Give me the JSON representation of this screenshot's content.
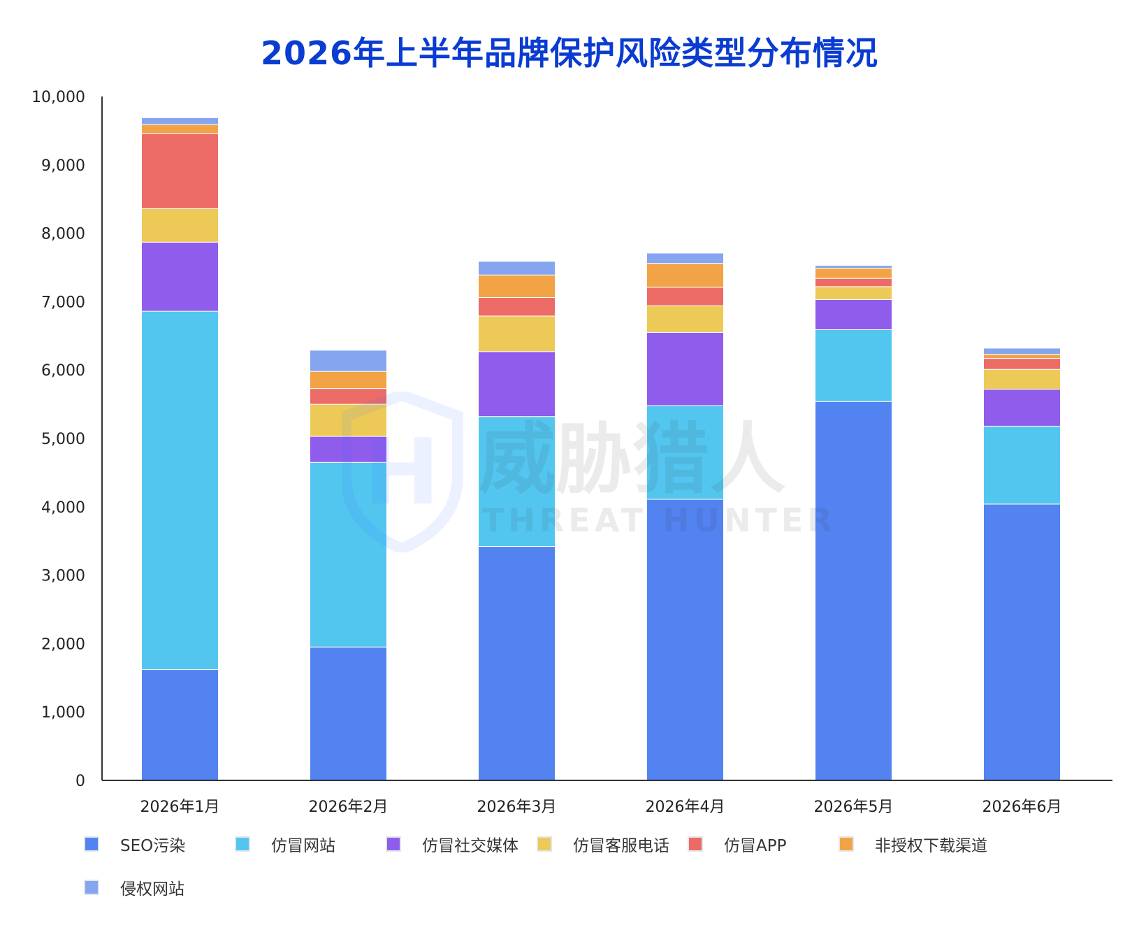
{
  "chart_data": {
    "type": "bar",
    "stacked": true,
    "title": "2026年上半年品牌保护风险类型分布情况",
    "categories": [
      "2026年1月",
      "2026年2月",
      "2026年3月",
      "2026年4月",
      "2026年5月",
      "2026年6月"
    ],
    "ylim": [
      0,
      10000
    ],
    "yticks": [
      "0",
      "1,000",
      "2,000",
      "3,000",
      "4,000",
      "5,000",
      "6,000",
      "7,000",
      "8,000",
      "9,000",
      "10,000"
    ],
    "legend_position": "bottom",
    "grid": false,
    "series": [
      {
        "name": "SEO污染",
        "color": "#5283f0",
        "values": [
          1620,
          1950,
          3420,
          4110,
          5540,
          4040
        ]
      },
      {
        "name": "仿冒网站",
        "color": "#53c6f0",
        "values": [
          5240,
          2700,
          1900,
          1370,
          1050,
          1140
        ]
      },
      {
        "name": "仿冒社交媒体",
        "color": "#8f5ceb",
        "values": [
          1010,
          380,
          950,
          1070,
          440,
          540
        ]
      },
      {
        "name": "仿冒客服电话",
        "color": "#edca58",
        "values": [
          490,
          470,
          520,
          390,
          190,
          290
        ]
      },
      {
        "name": "仿冒APP",
        "color": "#ec6b67",
        "values": [
          1100,
          230,
          270,
          270,
          120,
          160
        ]
      },
      {
        "name": "非授权下载渠道",
        "color": "#f2a345",
        "values": [
          130,
          250,
          330,
          350,
          150,
          60
        ]
      },
      {
        "name": "侵权网站",
        "color": "#86a5f0",
        "values": [
          100,
          310,
          200,
          150,
          40,
          90
        ]
      }
    ]
  },
  "watermark": {
    "brand_cn": "威胁猎人",
    "brand_en": "THREAT HUNTER",
    "logo_letter": "H"
  }
}
